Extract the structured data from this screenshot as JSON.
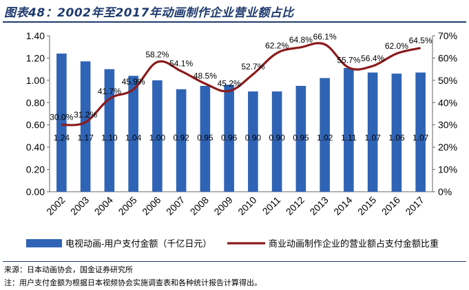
{
  "title": "图表48：2002年至2017年动画制作企业营业额占比",
  "source": "来源：日本动画协会，国金证券研究所",
  "footnote": "注：用户支付金额为根据日本视频协会实施调查表和各种统计报告计算得出。",
  "chart_data": {
    "type": "bar+line",
    "categories": [
      "2002",
      "2003",
      "2004",
      "2005",
      "2006",
      "2007",
      "2008",
      "2009",
      "2010",
      "2011",
      "2012",
      "2013",
      "2014",
      "2015",
      "2016",
      "2017"
    ],
    "series": [
      {
        "name": "电视动画-用户支付金额（千亿日元）",
        "type": "bar",
        "axis": "left",
        "color": "#2f63b5",
        "values": [
          1.24,
          1.17,
          1.1,
          1.04,
          1.0,
          0.92,
          0.95,
          0.96,
          0.9,
          0.9,
          0.95,
          1.02,
          1.11,
          1.07,
          1.06,
          1.07
        ],
        "labels": [
          "1.24",
          "1.17",
          "1.10",
          "1.04",
          "1.00",
          "0.92",
          "0.95",
          "0.96",
          "0.90",
          "0.90",
          "0.95",
          "1.02",
          "1.11",
          "1.07",
          "1.06",
          "1.07"
        ]
      },
      {
        "name": "商业动画制作企业的营业额占支付金额比重",
        "type": "line",
        "axis": "right",
        "color": "#8b1a1a",
        "values": [
          30.0,
          31.2,
          41.7,
          45.9,
          58.2,
          54.1,
          48.5,
          45.2,
          52.7,
          62.2,
          64.8,
          66.1,
          55.7,
          56.4,
          62.0,
          64.5
        ],
        "labels": [
          "30.0%",
          "31.2%",
          "41.7%",
          "45.9%",
          "58.2%",
          "54.1%",
          "48.5%",
          "45.2%",
          "52.7%",
          "62.2%",
          "64.8%",
          "66.1%",
          "55.7%",
          "56.4%",
          "62.0%",
          "64.5%"
        ]
      }
    ],
    "y_left": {
      "min": 0,
      "max": 1.4,
      "ticks": [
        "0.00",
        "0.20",
        "0.40",
        "0.60",
        "0.80",
        "1.00",
        "1.20",
        "1.40"
      ]
    },
    "y_right": {
      "min": 0,
      "max": 70,
      "ticks": [
        "0%",
        "10%",
        "20%",
        "30%",
        "40%",
        "50%",
        "60%",
        "70%"
      ]
    },
    "grid": false,
    "legend_position": "bottom"
  }
}
